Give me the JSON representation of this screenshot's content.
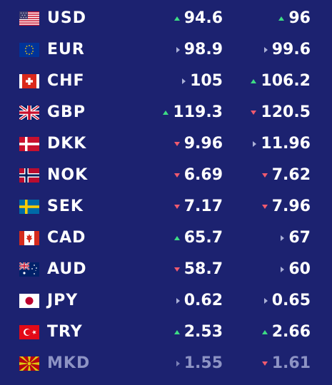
{
  "rows": [
    {
      "code": "USD",
      "flag": "us-flag-icon",
      "buy": "94.6",
      "buy_trend": "up",
      "sell": "96",
      "sell_trend": "up"
    },
    {
      "code": "EUR",
      "flag": "eu-flag-icon",
      "buy": "98.9",
      "buy_trend": "same",
      "sell": "99.6",
      "sell_trend": "same"
    },
    {
      "code": "CHF",
      "flag": "ch-flag-icon",
      "buy": "105",
      "buy_trend": "same",
      "sell": "106.2",
      "sell_trend": "up"
    },
    {
      "code": "GBP",
      "flag": "gb-flag-icon",
      "buy": "119.3",
      "buy_trend": "up",
      "sell": "120.5",
      "sell_trend": "down"
    },
    {
      "code": "DKK",
      "flag": "dk-flag-icon",
      "buy": "9.96",
      "buy_trend": "down",
      "sell": "11.96",
      "sell_trend": "same"
    },
    {
      "code": "NOK",
      "flag": "no-flag-icon",
      "buy": "6.69",
      "buy_trend": "down",
      "sell": "7.62",
      "sell_trend": "down"
    },
    {
      "code": "SEK",
      "flag": "se-flag-icon",
      "buy": "7.17",
      "buy_trend": "down",
      "sell": "7.96",
      "sell_trend": "down"
    },
    {
      "code": "CAD",
      "flag": "ca-flag-icon",
      "buy": "65.7",
      "buy_trend": "up",
      "sell": "67",
      "sell_trend": "same"
    },
    {
      "code": "AUD",
      "flag": "au-flag-icon",
      "buy": "58.7",
      "buy_trend": "down",
      "sell": "60",
      "sell_trend": "same"
    },
    {
      "code": "JPY",
      "flag": "jp-flag-icon",
      "buy": "0.62",
      "buy_trend": "same",
      "sell": "0.65",
      "sell_trend": "same"
    },
    {
      "code": "TRY",
      "flag": "tr-flag-icon",
      "buy": "2.53",
      "buy_trend": "up",
      "sell": "2.66",
      "sell_trend": "up"
    },
    {
      "code": "MKD",
      "flag": "mk-flag-icon",
      "buy": "1.55",
      "buy_trend": "same",
      "sell": "1.61",
      "sell_trend": "down"
    }
  ],
  "colors": {
    "background": "#1c2270",
    "text": "#ffffff",
    "up": "#3ddc84",
    "down": "#f05a6e",
    "same": "#aab0d6",
    "dimmed_text": "#8d93c4"
  }
}
